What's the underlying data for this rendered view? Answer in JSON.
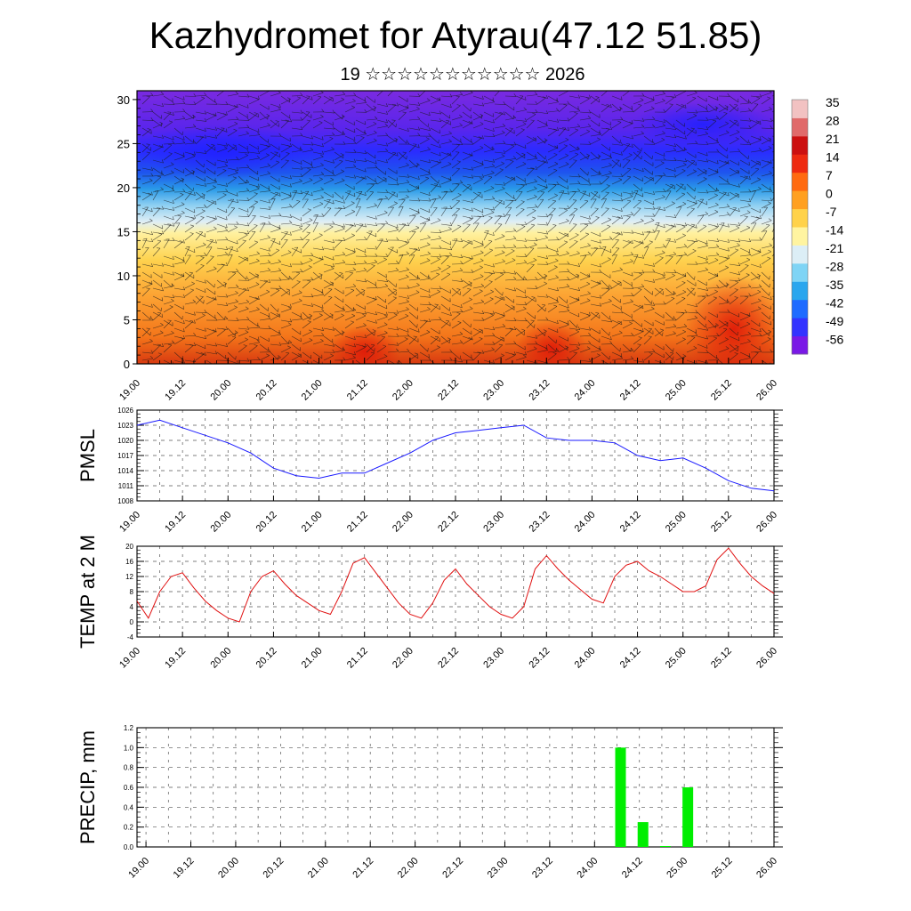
{
  "title": "Kazhydromet for Atyrau(47.12 51.85)",
  "subtitle": "19 ☆☆☆☆☆☆☆☆☆☆☆ 2026",
  "time_labels": [
    "19.00",
    "19.12",
    "20.00",
    "20.12",
    "21.00",
    "21.12",
    "22.00",
    "22.12",
    "23.00",
    "23.12",
    "24.00",
    "24.12",
    "25.00",
    "25.12",
    "26.00"
  ],
  "colors": {
    "pmsl_line": "#1a1aff",
    "temp_line": "#e01010",
    "precip_bar": "#00ee00",
    "grid": "#555555"
  },
  "chart_data": [
    {
      "type": "heatmap",
      "name": "cross-section",
      "ylim": [
        0,
        31
      ],
      "yticks": [
        0,
        5,
        10,
        15,
        20,
        25,
        30
      ],
      "colorbar_labels": [
        "35",
        "28",
        "21",
        "14",
        "7",
        "0",
        "-7",
        "-14",
        "-21",
        "-28",
        "-35",
        "-42",
        "-49",
        "-56"
      ],
      "colorbar_range": [
        -63,
        42
      ],
      "colorbar_colors": [
        "#7a19e6",
        "#3333ff",
        "#1e6bff",
        "#2aa6ee",
        "#7fd4f5",
        "#dceef6",
        "#fff4a0",
        "#ffd24a",
        "#ffa020",
        "#ff6a10",
        "#ee2a10",
        "#cc1010",
        "#e06a6a",
        "#f2c2c2"
      ]
    },
    {
      "type": "line",
      "name": "pmsl",
      "ylabel": "PMSL",
      "ylim": [
        1008,
        1026
      ],
      "yticks": [
        1008,
        1011,
        1014,
        1017,
        1020,
        1023,
        1026
      ],
      "x_range": [
        0,
        7
      ],
      "x": [
        0,
        0.25,
        0.5,
        0.75,
        1,
        1.25,
        1.5,
        1.75,
        2,
        2.25,
        2.5,
        2.75,
        3,
        3.25,
        3.5,
        3.75,
        4,
        4.25,
        4.5,
        4.75,
        5,
        5.25,
        5.5,
        5.75,
        6,
        6.25,
        6.5,
        6.75,
        7
      ],
      "values": [
        1023,
        1024,
        1022.5,
        1021,
        1019.5,
        1017.5,
        1014.5,
        1013,
        1012.5,
        1013.5,
        1013.5,
        1015.5,
        1017.5,
        1020,
        1021.5,
        1022,
        1022.5,
        1023,
        1020.5,
        1020,
        1020,
        1019.5,
        1017,
        1016,
        1016.5,
        1014.5,
        1012,
        1010.5,
        1010
      ]
    },
    {
      "type": "line",
      "name": "temp",
      "ylabel": "TEMP at 2 M",
      "ylim": [
        -4,
        20
      ],
      "yticks": [
        -4,
        0,
        4,
        8,
        12,
        16,
        20
      ],
      "x_range": [
        0,
        7
      ],
      "x": [
        0,
        0.125,
        0.25,
        0.375,
        0.5,
        0.625,
        0.75,
        0.875,
        1,
        1.125,
        1.25,
        1.375,
        1.5,
        1.625,
        1.75,
        1.875,
        2,
        2.125,
        2.25,
        2.375,
        2.5,
        2.625,
        2.75,
        2.875,
        3,
        3.125,
        3.25,
        3.375,
        3.5,
        3.625,
        3.75,
        3.875,
        4,
        4.125,
        4.25,
        4.375,
        4.5,
        4.625,
        4.75,
        4.875,
        5,
        5.125,
        5.25,
        5.375,
        5.5,
        5.625,
        5.75,
        5.875,
        6,
        6.125,
        6.25,
        6.375,
        6.5,
        6.625,
        6.75,
        6.875,
        7
      ],
      "values": [
        5.5,
        1,
        8,
        12,
        13,
        9,
        5.5,
        3,
        1,
        0,
        8,
        12,
        13.5,
        10,
        7,
        5,
        3,
        2,
        8,
        15.5,
        17,
        13,
        9,
        5,
        2,
        1,
        5,
        11,
        14,
        10,
        7,
        4,
        2,
        1,
        4,
        14,
        17.5,
        14,
        11,
        8.5,
        6,
        5,
        12,
        15,
        16,
        13.5,
        12,
        10,
        8,
        8,
        9.5,
        16.5,
        19.5,
        15.5,
        12,
        9.5,
        7.5
      ]
    },
    {
      "type": "bar",
      "name": "precip",
      "ylabel": "PRECIP, mm",
      "ylim": [
        0,
        1.2
      ],
      "yticks": [
        0.0,
        0.2,
        0.4,
        0.6,
        0.8,
        1.0,
        1.2
      ],
      "x_range": [
        -0.1,
        7
      ],
      "x": [
        5.25,
        5.5,
        5.75,
        6.0
      ],
      "values": [
        1.0,
        0.25,
        0.0,
        0.6
      ]
    }
  ]
}
